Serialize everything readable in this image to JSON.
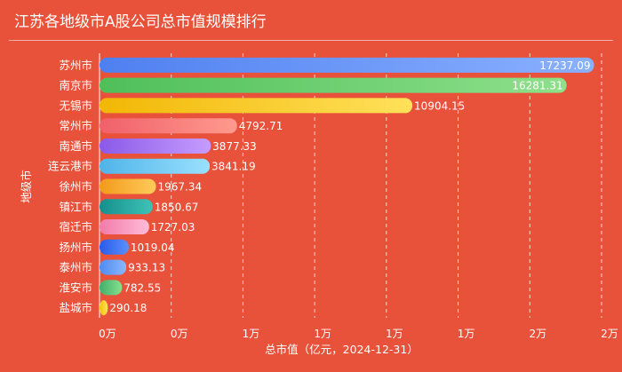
{
  "chart_data": {
    "type": "bar",
    "orientation": "horizontal",
    "title": "江苏各地级市A股公司总市值规模排行",
    "xlabel": "总市值（亿元，2024-12-31）",
    "ylabel": "地级市",
    "categories": [
      "苏州市",
      "南京市",
      "无锡市",
      "常州市",
      "南通市",
      "连云港市",
      "徐州市",
      "镇江市",
      "宿迁市",
      "扬州市",
      "泰州市",
      "淮安市",
      "盐城市"
    ],
    "values": [
      17237.09,
      16281.31,
      10904.15,
      4792.71,
      3877.33,
      3841.19,
      1967.34,
      1850.67,
      1727.03,
      1019.04,
      933.13,
      782.55,
      290.18
    ],
    "value_labels": [
      "17237.09",
      "16281.31",
      "10904.15",
      "4792.71",
      "3877.33",
      "3841.19",
      "1967.34",
      "1850.67",
      "1727.03",
      "1019.04",
      "933.13",
      "782.55",
      "290.18"
    ],
    "xticks": [
      0,
      2500,
      5000,
      7500,
      10000,
      12500,
      15000,
      17500
    ],
    "xtick_labels": [
      "0万",
      "0万",
      "1万",
      "1万",
      "1万",
      "1万",
      "2万",
      "2万"
    ],
    "xlim": [
      0,
      17500
    ],
    "grid": true,
    "colors": [
      [
        "#4f80f0",
        "#8ab0ff"
      ],
      [
        "#4fbf5a",
        "#8ee08a"
      ],
      [
        "#f2b705",
        "#ffe15a"
      ],
      [
        "#f0606a",
        "#ff9a8e"
      ],
      [
        "#8a5ae8",
        "#c79cff"
      ],
      [
        "#4fb4e8",
        "#9ae0ff"
      ],
      [
        "#f29a1a",
        "#ffca5a"
      ],
      [
        "#14908c",
        "#3fc2b6"
      ],
      [
        "#f27aa8",
        "#ffbcd8"
      ],
      [
        "#2a5ae8",
        "#5a90ff"
      ],
      [
        "#4f8af0",
        "#8ab8ff"
      ],
      [
        "#3faf6a",
        "#86e08e"
      ],
      [
        "#f2c20a",
        "#ffe25a"
      ]
    ]
  }
}
